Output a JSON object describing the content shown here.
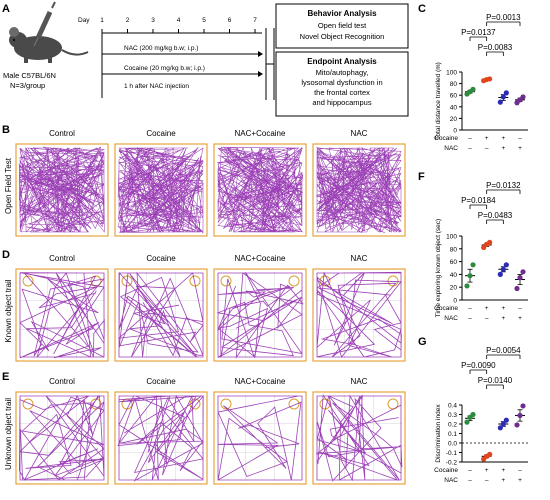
{
  "panels": {
    "A": "A",
    "B": "B",
    "C": "C",
    "D": "D",
    "E": "E",
    "F": "F",
    "G": "G"
  },
  "schematic": {
    "mouse_label_1": "Male C57BL/6N",
    "mouse_label_2": "N=3/group",
    "day_label": "Day",
    "days": [
      "1",
      "2",
      "3",
      "4",
      "5",
      "6",
      "7"
    ],
    "nac_line": "NAC (200 mg/kg b.w; i.p.)",
    "cocaine_line": "Cocaine (20 mg/kg b.w; i.p.)",
    "timing_line": "1 h after NAC injection",
    "behavior_box": {
      "title": "Behavior Analysis",
      "lines": [
        "Open field test",
        "Novel Object Recognition"
      ]
    },
    "endpoint_box": {
      "title": "Endpoint Analysis",
      "lines": [
        "Mito/autophagy,",
        "lysosomal dysfunction in",
        "the frontal cortex",
        "and hippocampus"
      ]
    }
  },
  "track_grid": {
    "columns": [
      "Control",
      "Cocaine",
      "NAC+Cocaine",
      "NAC"
    ],
    "rows": [
      "Open Field Test",
      "Known object trail",
      "Unknown object trail"
    ],
    "track_color": "#8B1FA9",
    "frame_color": "#E8A33C"
  },
  "treatment_table": {
    "row1_label": "Cocaine",
    "row2_label": "NAC",
    "row1": [
      "–",
      "+",
      "+",
      "–"
    ],
    "row2": [
      "–",
      "–",
      "+",
      "+"
    ]
  },
  "group_colors": [
    "#2E8B3E",
    "#E0461E",
    "#2B2BB8",
    "#6E2C8E"
  ],
  "chart_data": [
    {
      "type": "scatter",
      "panel": "C",
      "ylabel": "Total distance travelled (m)",
      "ylim": [
        0,
        100
      ],
      "yticks": [
        0,
        20,
        40,
        60,
        80,
        100
      ],
      "groups": [
        "Control",
        "Cocaine",
        "NAC+Cocaine",
        "NAC"
      ],
      "points": [
        [
          62,
          66,
          70
        ],
        [
          85,
          87,
          88
        ],
        [
          48,
          57,
          64
        ],
        [
          47,
          52,
          57
        ]
      ],
      "means": [
        66,
        87,
        56,
        52
      ],
      "sems": [
        2.5,
        1,
        5,
        3
      ],
      "comparisons": [
        {
          "from": 0,
          "to": 1,
          "p": "P=0.0137",
          "level": 1
        },
        {
          "from": 1,
          "to": 2,
          "p": "P=0.0083",
          "level": 0
        },
        {
          "from": 1,
          "to": 3,
          "p": "P=0.0013",
          "level": 2
        }
      ]
    },
    {
      "type": "scatter",
      "panel": "F",
      "ylabel": "Time exploring known object (sec)",
      "ylim": [
        0,
        100
      ],
      "yticks": [
        0,
        20,
        40,
        60,
        80,
        100
      ],
      "groups": [
        "Control",
        "Cocaine",
        "NAC+Cocaine",
        "NAC"
      ],
      "points": [
        [
          22,
          38,
          55
        ],
        [
          82,
          87,
          90
        ],
        [
          40,
          48,
          55
        ],
        [
          18,
          35,
          44
        ]
      ],
      "means": [
        38,
        86,
        48,
        32
      ],
      "sems": [
        10,
        2.5,
        4,
        8
      ],
      "comparisons": [
        {
          "from": 0,
          "to": 1,
          "p": "P=0.0184",
          "level": 1
        },
        {
          "from": 1,
          "to": 2,
          "p": "P=0.0483",
          "level": 0
        },
        {
          "from": 1,
          "to": 3,
          "p": "P=0.0132",
          "level": 2
        }
      ]
    },
    {
      "type": "scatter",
      "panel": "G",
      "ylabel": "Discrimination index",
      "ylim": [
        -0.2,
        0.4
      ],
      "yticks": [
        -0.2,
        -0.1,
        0.0,
        0.1,
        0.2,
        0.3,
        0.4
      ],
      "ytick_labels": [
        "-0.2",
        "-0.1",
        "0.0",
        "0.1",
        "0.2",
        "0.3",
        "0.4"
      ],
      "dashed_zero": true,
      "groups": [
        "Control",
        "Cocaine",
        "NAC+Cocaine",
        "NAC"
      ],
      "points": [
        [
          0.22,
          0.27,
          0.3
        ],
        [
          -0.17,
          -0.14,
          -0.12
        ],
        [
          0.16,
          0.2,
          0.24
        ],
        [
          0.19,
          0.29,
          0.39
        ]
      ],
      "means": [
        0.26,
        -0.14,
        0.2,
        0.29
      ],
      "sems": [
        0.025,
        0.015,
        0.025,
        0.06
      ],
      "comparisons": [
        {
          "from": 0,
          "to": 1,
          "p": "P=0.0090",
          "level": 1
        },
        {
          "from": 1,
          "to": 2,
          "p": "P=0.0140",
          "level": 0
        },
        {
          "from": 1,
          "to": 3,
          "p": "P=0.0054",
          "level": 2
        }
      ]
    }
  ]
}
